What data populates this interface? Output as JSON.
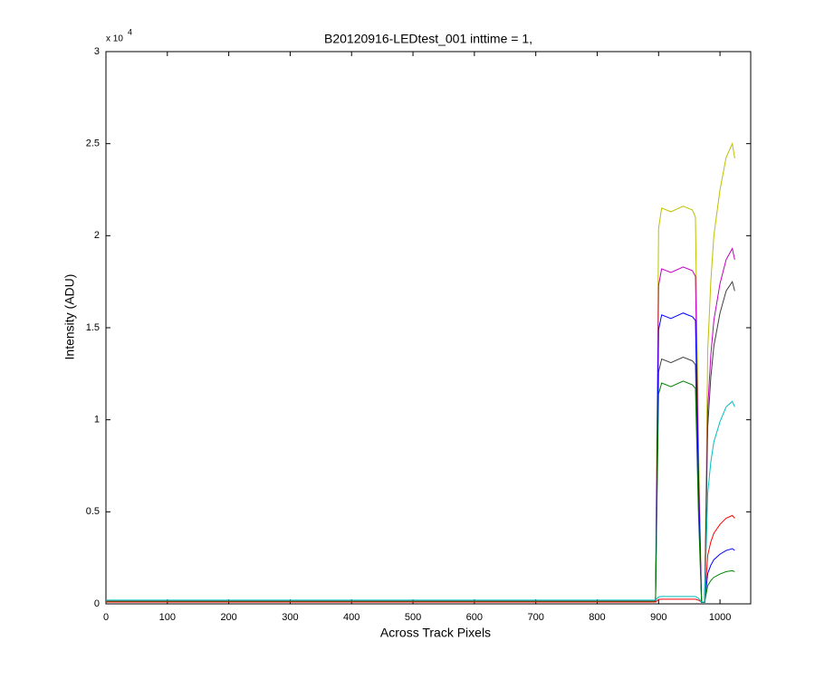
{
  "chart_data": {
    "type": "line",
    "title": "B20120916-LEDtest_001 inttime = 1,",
    "xlabel": "Across Track Pixels",
    "ylabel": "Intensity (ADU)",
    "y_multiplier": "x 10",
    "y_multiplier_exponent": "4",
    "x": [
      0,
      100,
      200,
      300,
      400,
      500,
      600,
      700,
      800,
      880,
      895,
      900,
      905,
      920,
      940,
      955,
      960,
      965,
      970,
      975,
      980,
      985,
      990,
      1000,
      1010,
      1020,
      1024
    ],
    "series": [
      {
        "color": "#bfbf00",
        "values": [
          150,
          150,
          150,
          150,
          150,
          150,
          150,
          150,
          150,
          150,
          150,
          20400,
          21500,
          21300,
          21600,
          21400,
          21000,
          8600,
          80,
          80,
          13750,
          17500,
          20000,
          22500,
          24250,
          25000,
          24200
        ]
      },
      {
        "color": "#bf00bf",
        "values": [
          150,
          150,
          150,
          150,
          150,
          150,
          150,
          150,
          150,
          150,
          150,
          17300,
          18200,
          18000,
          18300,
          18100,
          17800,
          7300,
          80,
          80,
          10600,
          13500,
          15400,
          17400,
          18700,
          19300,
          18700
        ]
      },
      {
        "color": "#404040",
        "values": [
          150,
          150,
          150,
          150,
          150,
          150,
          150,
          150,
          150,
          150,
          150,
          12600,
          13300,
          13100,
          13400,
          13200,
          13000,
          5300,
          80,
          80,
          9600,
          12300,
          14000,
          15800,
          17000,
          17500,
          17000
        ]
      },
      {
        "color": "#0000ff",
        "values": [
          120,
          120,
          120,
          120,
          120,
          120,
          120,
          120,
          120,
          120,
          120,
          14900,
          15700,
          15500,
          15800,
          15600,
          15400,
          6300,
          80,
          80,
          1650,
          2100,
          2400,
          2700,
          2900,
          3000,
          2900
        ]
      },
      {
        "color": "#008000",
        "values": [
          120,
          120,
          120,
          120,
          120,
          120,
          120,
          120,
          120,
          120,
          120,
          11400,
          12000,
          11800,
          12100,
          11900,
          11700,
          4800,
          80,
          80,
          990,
          1260,
          1440,
          1620,
          1750,
          1800,
          1750
        ]
      },
      {
        "color": "#ff0000",
        "values": [
          100,
          100,
          100,
          100,
          100,
          100,
          100,
          100,
          100,
          100,
          100,
          240,
          250,
          250,
          250,
          250,
          250,
          200,
          100,
          100,
          2640,
          3360,
          3840,
          4320,
          4650,
          4800,
          4650
        ]
      },
      {
        "color": "#00bfbf",
        "values": [
          200,
          200,
          200,
          200,
          200,
          200,
          200,
          200,
          200,
          200,
          200,
          380,
          400,
          400,
          400,
          400,
          400,
          300,
          100,
          100,
          6000,
          7700,
          8800,
          9900,
          10700,
          11000,
          10700
        ]
      }
    ],
    "xlim": [
      0,
      1050
    ],
    "xticks": [
      0,
      100,
      200,
      300,
      400,
      500,
      600,
      700,
      800,
      900,
      1000
    ],
    "ylim": [
      0,
      30000
    ],
    "yticks": [
      0,
      {
        "value": 5000,
        "label": "0.5"
      },
      {
        "value": 10000,
        "label": "1"
      },
      {
        "value": 15000,
        "label": "1.5"
      },
      {
        "value": 20000,
        "label": "2"
      },
      {
        "value": 25000,
        "label": "2.5"
      },
      {
        "value": 30000,
        "label": "3"
      }
    ],
    "grid": false
  }
}
